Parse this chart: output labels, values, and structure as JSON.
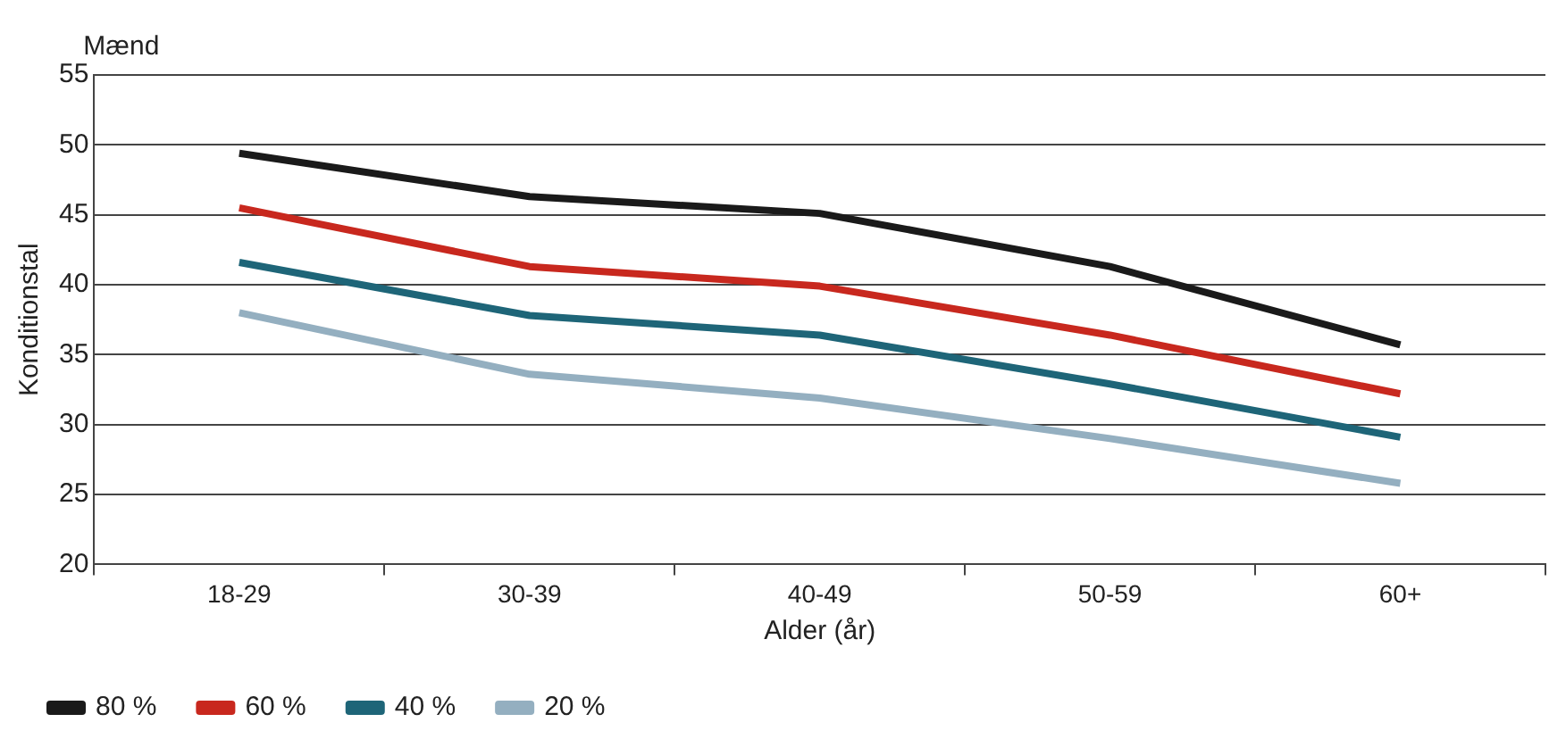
{
  "chart_data": {
    "type": "line",
    "title": "Mænd",
    "xlabel": "Alder (år)",
    "ylabel": "Konditionstal",
    "categories": [
      "18-29",
      "30-39",
      "40-49",
      "50-59",
      "60+"
    ],
    "series": [
      {
        "name": "80 %",
        "color": "#1a1a1a",
        "values": [
          49.4,
          46.3,
          45.1,
          41.3,
          35.7
        ]
      },
      {
        "name": "60 %",
        "color": "#c8281e",
        "values": [
          45.5,
          41.3,
          39.9,
          36.4,
          32.2
        ]
      },
      {
        "name": "40 %",
        "color": "#1e6578",
        "values": [
          41.6,
          37.8,
          36.4,
          32.9,
          29.1
        ]
      },
      {
        "name": "20 %",
        "color": "#94afc0",
        "values": [
          38.0,
          33.6,
          31.9,
          29.0,
          25.8
        ]
      }
    ],
    "ylim": [
      20,
      55
    ],
    "yticks": [
      20,
      25,
      30,
      35,
      40,
      45,
      50,
      55
    ],
    "grid": "y",
    "legend": "bottom left",
    "marker": "none",
    "line_style": "solid"
  }
}
